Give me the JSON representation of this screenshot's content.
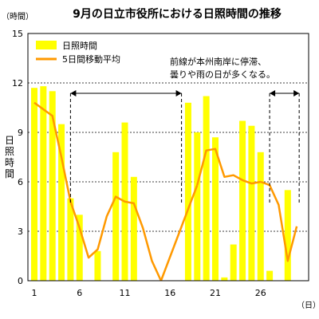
{
  "chart_data": {
    "type": "bar+line",
    "title": "9月の日立市役所における日照時間の推移",
    "y_unit": "（時間）",
    "ylabel": "日照時間",
    "x_unit": "（日）",
    "ylim": [
      0,
      15
    ],
    "y_ticks": [
      0,
      3,
      6,
      9,
      12,
      15
    ],
    "x_ticks": [
      1,
      6,
      11,
      16,
      21,
      26
    ],
    "grid": "horizontal dashed",
    "legend": {
      "position": "top-left",
      "entries": [
        {
          "name": "日照時間",
          "kind": "bar",
          "color": "#ffff00"
        },
        {
          "name": "5日間移動平均",
          "kind": "line",
          "color": "#ff9900"
        }
      ]
    },
    "days": [
      1,
      2,
      3,
      4,
      5,
      6,
      7,
      8,
      9,
      10,
      11,
      12,
      13,
      14,
      15,
      16,
      17,
      18,
      19,
      20,
      21,
      22,
      23,
      24,
      25,
      26,
      27,
      28,
      29,
      30
    ],
    "series": [
      {
        "name": "日照時間",
        "type": "bar",
        "color": "#ffff00",
        "values": [
          11.7,
          11.8,
          11.5,
          9.5,
          5.0,
          4.0,
          0,
          1.8,
          0,
          7.8,
          9.6,
          6.3,
          0,
          0,
          0,
          0,
          0,
          10.8,
          9.0,
          11.2,
          8.7,
          0.2,
          2.2,
          9.7,
          9.4,
          7.8,
          0.6,
          0,
          5.5,
          0
        ]
      },
      {
        "name": "5日間移動平均",
        "type": "line",
        "color": "#ff9900",
        "values": [
          10.8,
          10.4,
          10.0,
          7.5,
          4.8,
          3.2,
          1.4,
          1.9,
          3.9,
          5.1,
          4.8,
          4.7,
          3.2,
          1.2,
          0,
          null,
          null,
          null,
          5.8,
          7.9,
          8.0,
          6.3,
          6.4,
          6.1,
          5.9,
          6.0,
          5.8,
          4.6,
          1.2,
          3.3
        ]
      }
    ],
    "annotation": {
      "lines": [
        "前線が本州南岸に停滞、",
        "曇りや雨の日が多くなる。"
      ],
      "periods": [
        [
          5,
          17
        ],
        [
          27,
          30
        ]
      ]
    },
    "line_gap": [
      15,
      19
    ]
  }
}
